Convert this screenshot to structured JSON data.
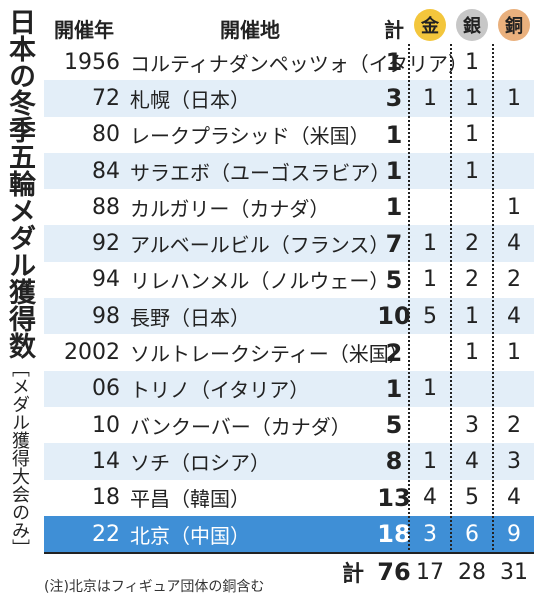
{
  "title_main": "日本の冬季五輪メダル獲得数",
  "title_sub": "［メダル獲得大会のみ］",
  "headers": {
    "year": "開催年",
    "location": "開催地",
    "total": "計",
    "gold": "金",
    "silver": "銀",
    "bronze": "銅"
  },
  "colors": {
    "gold": "#f3c63c",
    "silver": "#c7c7c7",
    "bronze": "#e9b07d",
    "highlight": "#3f8fd6",
    "alt_row": "#e3eef8"
  },
  "chart_data": {
    "type": "table",
    "columns": [
      "開催年",
      "開催地",
      "計",
      "金",
      "銀",
      "銅"
    ],
    "rows": [
      {
        "year": "1956",
        "location": "コルティナダンペッツォ（イタリア）",
        "total": "1",
        "gold": "",
        "silver": "1",
        "bronze": ""
      },
      {
        "year": "72",
        "location": "札幌（日本）",
        "total": "3",
        "gold": "1",
        "silver": "1",
        "bronze": "1"
      },
      {
        "year": "80",
        "location": "レークプラシッド（米国）",
        "total": "1",
        "gold": "",
        "silver": "1",
        "bronze": ""
      },
      {
        "year": "84",
        "location": "サラエボ（ユーゴスラビア）",
        "total": "1",
        "gold": "",
        "silver": "1",
        "bronze": ""
      },
      {
        "year": "88",
        "location": "カルガリー（カナダ）",
        "total": "1",
        "gold": "",
        "silver": "",
        "bronze": "1"
      },
      {
        "year": "92",
        "location": "アルベールビル（フランス）",
        "total": "7",
        "gold": "1",
        "silver": "2",
        "bronze": "4"
      },
      {
        "year": "94",
        "location": "リレハンメル（ノルウェー）",
        "total": "5",
        "gold": "1",
        "silver": "2",
        "bronze": "2"
      },
      {
        "year": "98",
        "location": "長野（日本）",
        "total": "10",
        "gold": "5",
        "silver": "1",
        "bronze": "4"
      },
      {
        "year": "2002",
        "location": "ソルトレークシティー（米国）",
        "total": "2",
        "gold": "",
        "silver": "1",
        "bronze": "1"
      },
      {
        "year": "06",
        "location": "トリノ（イタリア）",
        "total": "1",
        "gold": "1",
        "silver": "",
        "bronze": ""
      },
      {
        "year": "10",
        "location": "バンクーバー（カナダ）",
        "total": "5",
        "gold": "",
        "silver": "3",
        "bronze": "2"
      },
      {
        "year": "14",
        "location": "ソチ（ロシア）",
        "total": "8",
        "gold": "1",
        "silver": "4",
        "bronze": "3"
      },
      {
        "year": "18",
        "location": "平昌（韓国）",
        "total": "13",
        "gold": "4",
        "silver": "5",
        "bronze": "4"
      },
      {
        "year": "22",
        "location": "北京（中国）",
        "total": "18",
        "gold": "3",
        "silver": "6",
        "bronze": "9"
      }
    ],
    "highlight_row": 13,
    "totals": {
      "label": "計",
      "total": "76",
      "gold": "17",
      "silver": "28",
      "bronze": "31"
    }
  },
  "note": "(注)北京はフィギュア団体の銅含む"
}
